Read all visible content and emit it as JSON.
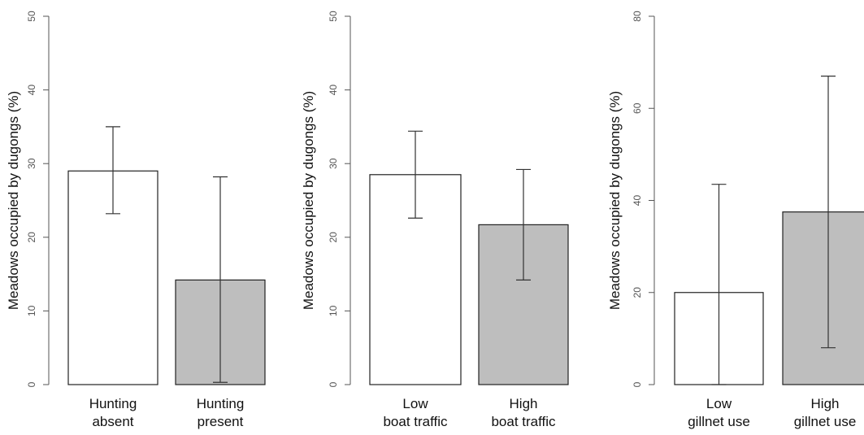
{
  "chart_data": [
    {
      "type": "bar",
      "ylabel": "Meadows occupied by dugongs (%)",
      "ylim": [
        0,
        50
      ],
      "yticks": [
        0,
        10,
        20,
        30,
        40,
        50
      ],
      "categories": [
        [
          "Hunting",
          "absent"
        ],
        [
          "Hunting",
          "present"
        ]
      ],
      "values": [
        29,
        14.2
      ],
      "err_low": [
        23.2,
        0.3
      ],
      "err_high": [
        35,
        28.2
      ],
      "colors": [
        "#ffffff",
        "#bebebe"
      ]
    },
    {
      "type": "bar",
      "ylabel": "Meadows occupied by dugongs (%)",
      "ylim": [
        0,
        50
      ],
      "yticks": [
        0,
        10,
        20,
        30,
        40,
        50
      ],
      "categories": [
        [
          "Low",
          "boat traffic"
        ],
        [
          "High",
          "boat traffic"
        ]
      ],
      "values": [
        28.5,
        21.7
      ],
      "err_low": [
        22.6,
        14.2
      ],
      "err_high": [
        34.4,
        29.2
      ],
      "colors": [
        "#ffffff",
        "#bebebe"
      ]
    },
    {
      "type": "bar",
      "ylabel": "Meadows occupied by dugongs (%)",
      "ylim": [
        0,
        80
      ],
      "yticks": [
        0,
        20,
        40,
        60,
        80
      ],
      "categories": [
        [
          "Low",
          "gillnet use"
        ],
        [
          "High",
          "gillnet use"
        ]
      ],
      "values": [
        20,
        37.5
      ],
      "err_low": [
        0,
        8
      ],
      "err_high": [
        43.5,
        67
      ],
      "colors": [
        "#ffffff",
        "#bebebe"
      ]
    }
  ]
}
